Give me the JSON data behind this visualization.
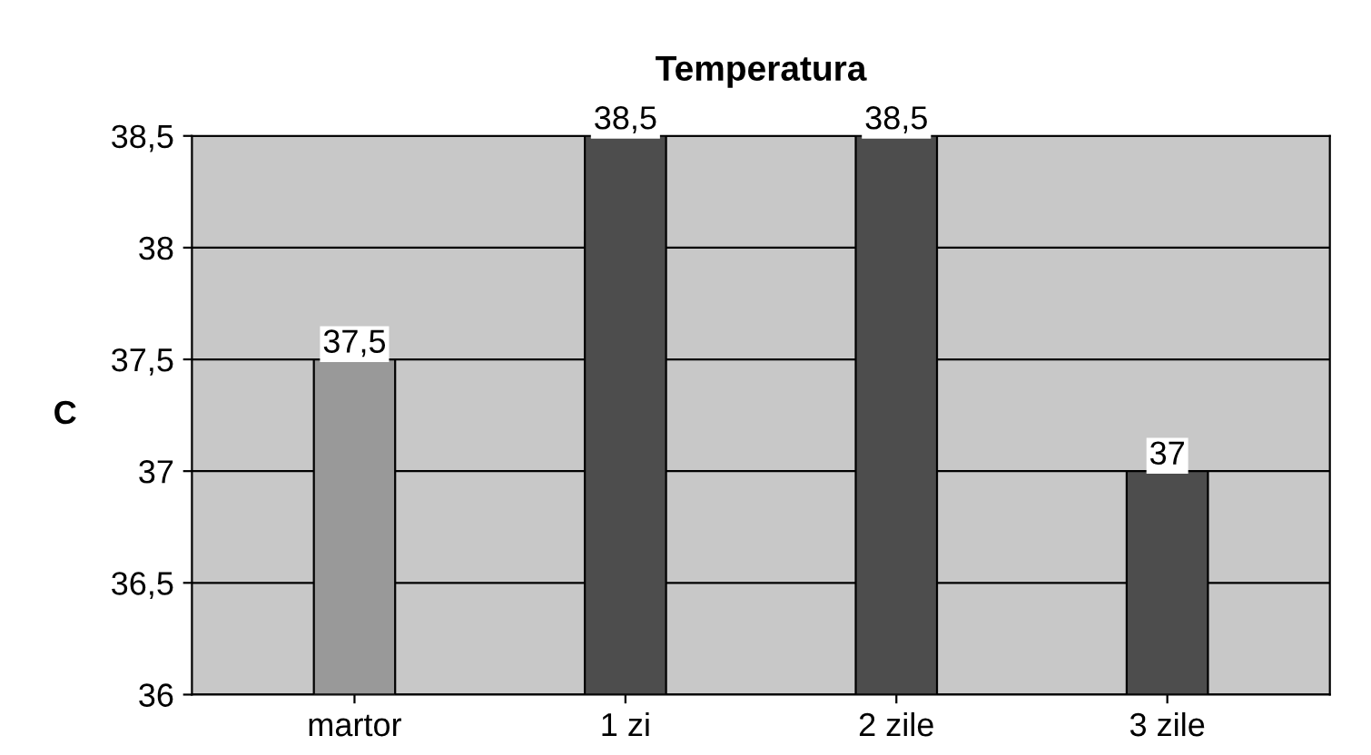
{
  "chart_data": {
    "type": "bar",
    "title": "Temperatura",
    "ylabel": "C",
    "categories": [
      "martor",
      "1 zi",
      "2 zile",
      "3 zile"
    ],
    "values": [
      37.5,
      38.5,
      38.5,
      37
    ],
    "colors": [
      "#999999",
      "#4d4d4d",
      "#4d4d4d",
      "#4d4d4d"
    ],
    "value_labels": [
      "37,5",
      "38,5",
      "38,5",
      "37"
    ],
    "ylim": [
      36,
      38.5
    ],
    "yticks": [
      36,
      {
        "value": 36.5,
        "label": "36,5"
      },
      37,
      {
        "value": 37.5,
        "label": "37,5"
      },
      38,
      {
        "value": 38.5,
        "label": "38,5"
      }
    ],
    "grid": "y",
    "legend": false
  }
}
